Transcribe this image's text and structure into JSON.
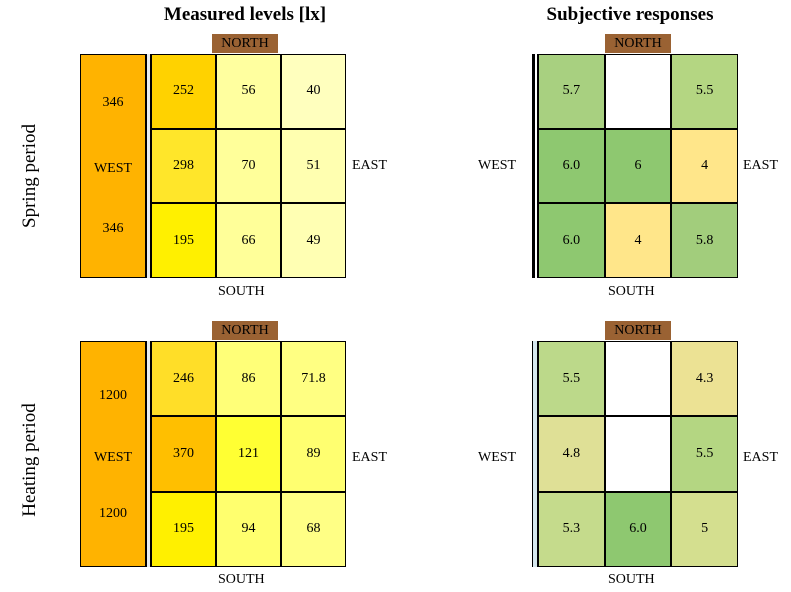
{
  "titles": {
    "measured": "Measured levels [lx]",
    "subjective": "Subjective responses"
  },
  "row_labels": {
    "spring": "Spring period",
    "heating": "Heating period"
  },
  "compass": {
    "north": "NORTH",
    "south": "SOUTH",
    "east": "EAST",
    "west": "WEST"
  },
  "chart_data": [
    {
      "type": "heatmap",
      "title": "Measured levels [lx]",
      "period": "Spring period",
      "west_values": [
        "346",
        "WEST",
        "346"
      ],
      "values": [
        [
          "252",
          "56",
          "40"
        ],
        [
          "298",
          "70",
          "51"
        ],
        [
          "195",
          "66",
          "49"
        ]
      ],
      "colors": [
        [
          "#ffd200",
          "#ffff9f",
          "#ffffbe"
        ],
        [
          "#ffe62a",
          "#ffff9a",
          "#ffffb0"
        ],
        [
          "#fff000",
          "#ffff99",
          "#ffffb3"
        ]
      ]
    },
    {
      "type": "heatmap",
      "title": "Subjective responses",
      "period": "Spring period",
      "values": [
        [
          "5.7",
          "",
          "5.5"
        ],
        [
          "6.0",
          "6",
          "4"
        ],
        [
          "6.0",
          "4",
          "5.8"
        ]
      ],
      "colors": [
        [
          "#a8d080",
          "#ffffff",
          "#b4d682"
        ],
        [
          "#8ec870",
          "#8ec870",
          "#ffe68a"
        ],
        [
          "#8ec870",
          "#ffe68a",
          "#a2cd7c"
        ]
      ]
    },
    {
      "type": "heatmap",
      "title": "Measured levels [lx]",
      "period": "Heating period",
      "west_values": [
        "1200",
        "WEST",
        "1200"
      ],
      "values": [
        [
          "246",
          "86",
          "71.8"
        ],
        [
          "370",
          "121",
          "89"
        ],
        [
          "195",
          "94",
          "68"
        ]
      ],
      "colors": [
        [
          "#ffde28",
          "#ffff78",
          "#ffff82"
        ],
        [
          "#ffbf00",
          "#ffff33",
          "#ffff70"
        ],
        [
          "#fff000",
          "#ffff6e",
          "#ffff85"
        ]
      ]
    },
    {
      "type": "heatmap",
      "title": "Subjective responses",
      "period": "Heating period",
      "values": [
        [
          "5.5",
          "",
          "4.3"
        ],
        [
          "4.8",
          "",
          "5.5"
        ],
        [
          "5.3",
          "6.0",
          "5"
        ]
      ],
      "colors": [
        [
          "#bcd98a",
          "#ffffff",
          "#ece294"
        ],
        [
          "#dfe096",
          "#ffffff",
          "#b4d682"
        ],
        [
          "#c5db8c",
          "#8ec870",
          "#d4df8f"
        ]
      ]
    }
  ]
}
